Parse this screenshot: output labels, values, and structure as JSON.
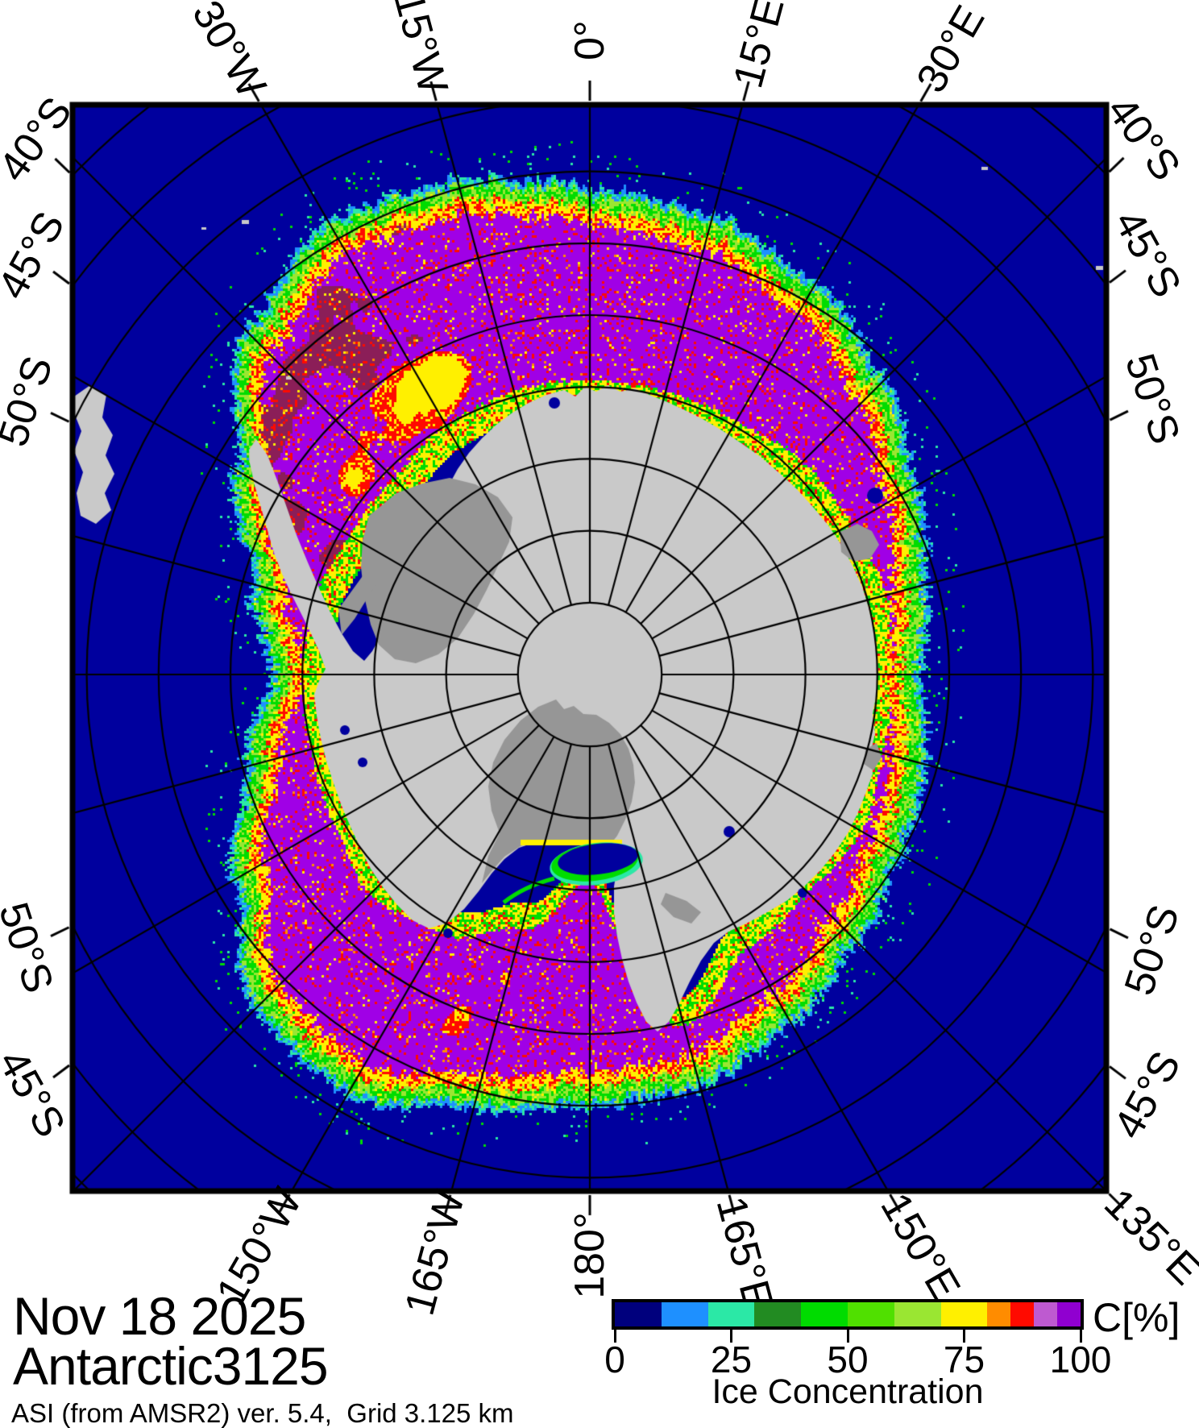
{
  "annotations": {
    "date": "Nov 18 2025",
    "grid": "Antarctic3125",
    "source": "ASI (from AMSR2) ver. 5.4,  Grid 3.125 km"
  },
  "colorbar": {
    "title": "C[%]",
    "axis_label": "Ice Concentration",
    "tick_values": [
      0,
      25,
      50,
      75,
      100
    ],
    "tick_labels": [
      "0",
      "25",
      "50",
      "75",
      "100"
    ],
    "segments": [
      {
        "range": [
          0,
          10
        ],
        "color": "#00007D"
      },
      {
        "range": [
          10,
          20
        ],
        "color": "#1E90FF"
      },
      {
        "range": [
          20,
          30
        ],
        "color": "#2BE8A6"
      },
      {
        "range": [
          30,
          40
        ],
        "color": "#228B22"
      },
      {
        "range": [
          40,
          50
        ],
        "color": "#00DC00"
      },
      {
        "range": [
          50,
          60
        ],
        "color": "#50E000"
      },
      {
        "range": [
          60,
          70
        ],
        "color": "#9AE632"
      },
      {
        "range": [
          70,
          80
        ],
        "color": "#FFF000"
      },
      {
        "range": [
          80,
          85
        ],
        "color": "#FF8C00"
      },
      {
        "range": [
          85,
          90
        ],
        "color": "#FF0A00"
      },
      {
        "range": [
          90,
          95
        ],
        "color": "#BE5AD0"
      },
      {
        "range": [
          95,
          100
        ],
        "color": "#9000D0"
      }
    ]
  },
  "map": {
    "graticule": {
      "meridian_step_deg": 15,
      "parallel_step_deg": 5
    },
    "meridian_labels": [
      {
        "text": "30°W",
        "lon": -30,
        "edge": "top"
      },
      {
        "text": "15°W",
        "lon": -15,
        "edge": "top"
      },
      {
        "text": "0°",
        "lon": 0,
        "edge": "top"
      },
      {
        "text": "15°E",
        "lon": 15,
        "edge": "top"
      },
      {
        "text": "30°E",
        "lon": 30,
        "edge": "top"
      },
      {
        "text": "150°W",
        "lon": -150,
        "edge": "bottom"
      },
      {
        "text": "165°W",
        "lon": -165,
        "edge": "bottom"
      },
      {
        "text": "180°",
        "lon": 180,
        "edge": "bottom"
      },
      {
        "text": "165°E",
        "lon": 165,
        "edge": "bottom"
      },
      {
        "text": "150°E",
        "lon": 150,
        "edge": "bottom"
      },
      {
        "text": "135°E",
        "lon": 135,
        "edge": "bottom"
      }
    ],
    "parallel_labels": [
      {
        "text": "40°S",
        "lat": 40,
        "side": "left",
        "half": "upper"
      },
      {
        "text": "45°S",
        "lat": 45,
        "side": "left",
        "half": "upper"
      },
      {
        "text": "50°S",
        "lat": 50,
        "side": "left",
        "half": "upper"
      },
      {
        "text": "50°S",
        "lat": 50,
        "side": "left",
        "half": "lower"
      },
      {
        "text": "45°S",
        "lat": 45,
        "side": "left",
        "half": "lower"
      },
      {
        "text": "40°S",
        "lat": 40,
        "side": "right",
        "half": "upper"
      },
      {
        "text": "45°S",
        "lat": 45,
        "side": "right",
        "half": "upper"
      },
      {
        "text": "50°S",
        "lat": 50,
        "side": "right",
        "half": "upper"
      },
      {
        "text": "50°S",
        "lat": 50,
        "side": "right",
        "half": "lower"
      },
      {
        "text": "45°S",
        "lat": 45,
        "side": "right",
        "half": "lower"
      }
    ],
    "colors": {
      "ocean": "#00009E",
      "land": "#C9C9C9",
      "ice_shelf": "#969696",
      "ice_max": "#8B1E58",
      "ice_high": "#A000E6",
      "ice_orchid": "#C93BD8",
      "frame": "#000000"
    }
  }
}
